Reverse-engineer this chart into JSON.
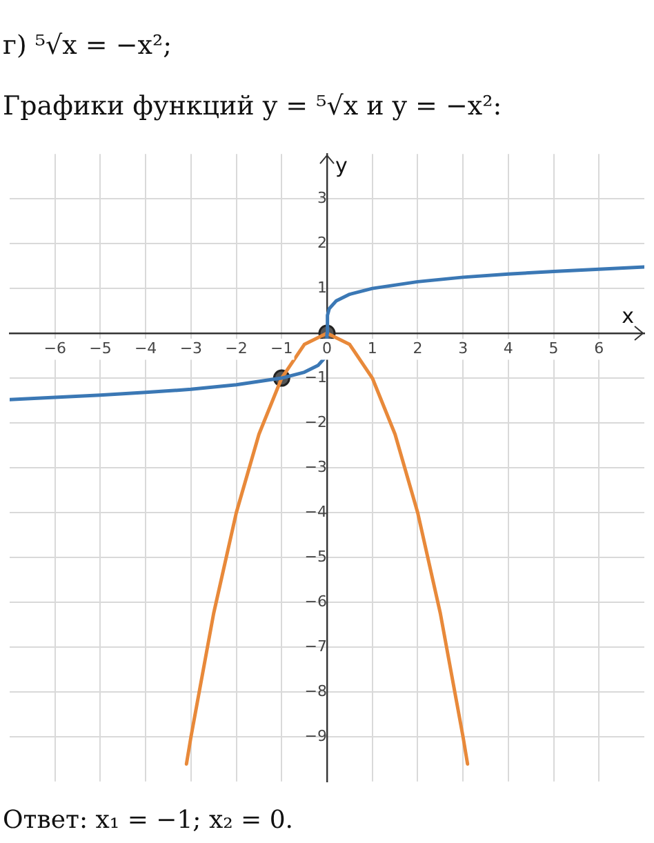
{
  "chart_data": {
    "type": "line",
    "title": "г) ⁵√x = −x²;",
    "subtitle": "Графики функций y = ⁵√x и y = −x²:",
    "xlabel": "x",
    "ylabel": "y",
    "annotations": [
      "Ответ: x₁ = −1; x₂ = 0."
    ],
    "xlim": [
      -7,
      7
    ],
    "ylim": [
      -10,
      4
    ],
    "xticks": [
      -6,
      -5,
      -4,
      -3,
      -2,
      -1,
      0,
      1,
      2,
      3,
      4,
      5,
      6
    ],
    "yticks": [
      -9,
      -8,
      -7,
      -6,
      -5,
      -4,
      -3,
      -2,
      -1,
      {
        "value": 0,
        "label": null
      },
      1,
      2,
      3
    ],
    "grid": true,
    "legend": false,
    "line_style": "solid",
    "series": [
      {
        "type": "line",
        "color": "#3b78b5",
        "marker": "none",
        "x": [
          -7,
          -6,
          -5,
          -4,
          -3,
          -2,
          -1,
          -0.5,
          -0.2,
          -0.05,
          -0.01,
          0,
          0.01,
          0.05,
          0.2,
          0.5,
          1,
          2,
          3,
          4,
          5,
          6,
          7
        ],
        "values": [
          -1.48,
          -1.43,
          -1.38,
          -1.32,
          -1.25,
          -1.15,
          -1,
          -0.87,
          -0.72,
          -0.55,
          -0.4,
          0,
          0.4,
          0.55,
          0.72,
          0.87,
          1,
          1.15,
          1.25,
          1.32,
          1.38,
          1.43,
          1.48
        ]
      },
      {
        "type": "line",
        "color": "#e8893a",
        "marker": "none",
        "x": [
          -3.1,
          -3,
          -2.5,
          -2,
          -1.5,
          -1,
          -0.5,
          0,
          0.5,
          1,
          1.5,
          2,
          2.5,
          3,
          3.1
        ],
        "values": [
          -9.61,
          -9,
          -6.25,
          -4,
          -2.25,
          -1,
          -0.25,
          0,
          -0.25,
          -1,
          -2.25,
          -4,
          -6.25,
          -9,
          -9.61
        ]
      },
      {
        "type": "scatter",
        "color": "#555555",
        "marker": "circle",
        "x": [
          -1,
          0
        ],
        "values": [
          -1,
          0
        ]
      }
    ]
  }
}
